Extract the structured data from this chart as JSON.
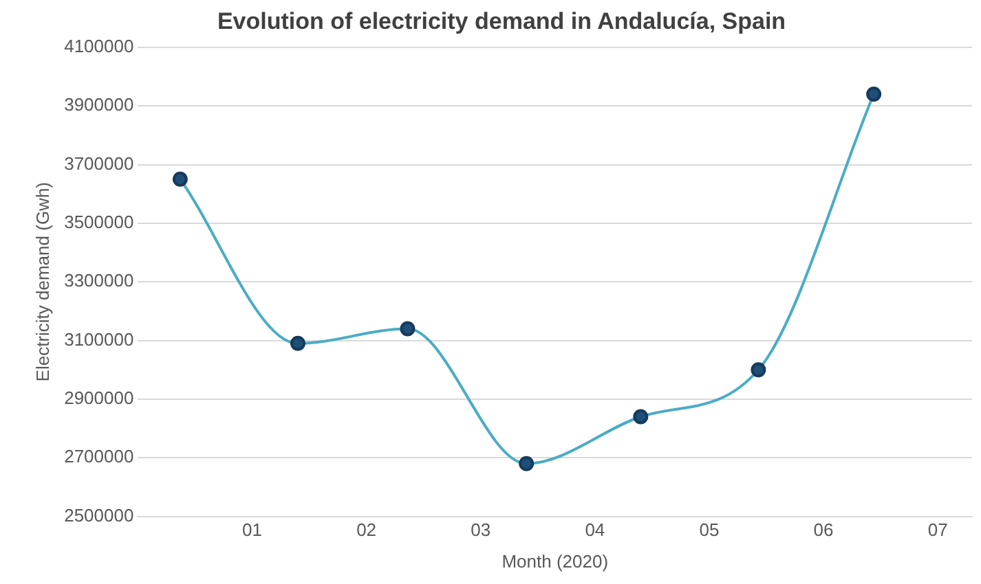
{
  "chart_data": {
    "type": "line",
    "title": "Evolution of electricity demand in Andalucía, Spain",
    "xlabel": "Month (2020)",
    "ylabel": "Electricity demand (Gwh)",
    "x": [
      0.37,
      1.4,
      2.36,
      3.4,
      4.4,
      5.43,
      6.44
    ],
    "series": [
      {
        "color": "#4bacc6",
        "values": [
          3650000,
          3090000,
          3140000,
          2680000,
          2840000,
          3000000,
          3940000
        ]
      }
    ],
    "xlim": [
      0,
      7.3
    ],
    "xticks": [
      {
        "value": 1,
        "label": "01"
      },
      {
        "value": 2,
        "label": "02"
      },
      {
        "value": 3,
        "label": "03"
      },
      {
        "value": 4,
        "label": "04"
      },
      {
        "value": 5,
        "label": "05"
      },
      {
        "value": 6,
        "label": "06"
      },
      {
        "value": 7,
        "label": "07"
      }
    ],
    "ylim": [
      2500000,
      4100000
    ],
    "yticks": [
      2500000,
      2700000,
      2900000,
      3100000,
      3300000,
      3500000,
      3700000,
      3900000,
      4100000
    ],
    "grid": "y",
    "legend": false,
    "marker": "circle",
    "line_style": "solid"
  }
}
